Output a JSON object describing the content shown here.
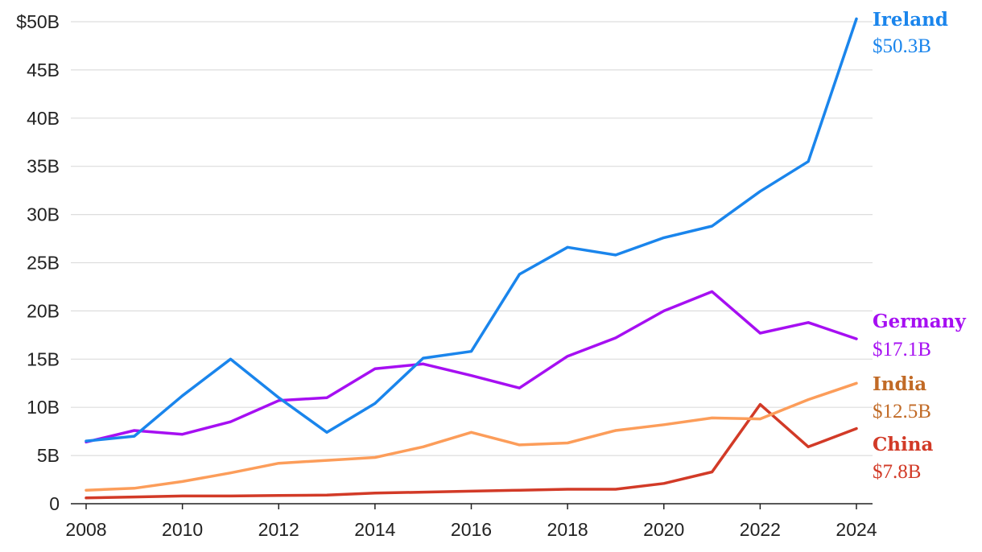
{
  "chart_data": {
    "type": "line",
    "x": [
      2008,
      2009,
      2010,
      2011,
      2012,
      2013,
      2014,
      2015,
      2016,
      2017,
      2018,
      2019,
      2020,
      2021,
      2022,
      2023,
      2024
    ],
    "x_ticks": [
      "2008",
      "2010",
      "2012",
      "2014",
      "2016",
      "2018",
      "2020",
      "2022",
      "2024"
    ],
    "x_tick_values": [
      2008,
      2010,
      2012,
      2014,
      2016,
      2018,
      2020,
      2022,
      2024
    ],
    "xlim": [
      2008,
      2024
    ],
    "y_ticks": [
      "0",
      "5B",
      "10B",
      "15B",
      "20B",
      "25B",
      "30B",
      "35B",
      "40B",
      "45B",
      "$50B"
    ],
    "y_tick_values": [
      0,
      5,
      10,
      15,
      20,
      25,
      30,
      35,
      40,
      45,
      50
    ],
    "ylim": [
      0,
      50
    ],
    "grid": true,
    "series": [
      {
        "key": "ireland",
        "name": "Ireland",
        "end_label": "$50.3B",
        "color": "#1a85ec",
        "label_color": "#1a85ec",
        "values": [
          6.5,
          7.0,
          11.2,
          15.0,
          11.0,
          7.4,
          10.4,
          15.1,
          15.8,
          23.8,
          26.6,
          25.8,
          27.6,
          28.8,
          32.4,
          35.5,
          50.3
        ]
      },
      {
        "key": "germany",
        "name": "Germany",
        "end_label": "$17.1B",
        "color": "#a60ff2",
        "label_color": "#a60ff2",
        "values": [
          6.4,
          7.6,
          7.2,
          8.5,
          10.7,
          11.0,
          14.0,
          14.5,
          13.3,
          12.0,
          15.3,
          17.2,
          20.0,
          22.0,
          17.7,
          18.8,
          17.1
        ]
      },
      {
        "key": "india",
        "name": "India",
        "end_label": "$12.5B",
        "color": "#fc9d5a",
        "label_color": "#c16a26",
        "values": [
          1.4,
          1.6,
          2.3,
          3.2,
          4.2,
          4.5,
          4.8,
          5.9,
          7.4,
          6.1,
          6.3,
          7.6,
          8.2,
          8.9,
          8.8,
          10.8,
          12.5
        ]
      },
      {
        "key": "china",
        "name": "China",
        "end_label": "$7.8B",
        "color": "#d23a27",
        "label_color": "#d23a27",
        "values": [
          0.6,
          0.7,
          0.8,
          0.8,
          0.85,
          0.9,
          1.1,
          1.2,
          1.3,
          1.4,
          1.5,
          1.5,
          2.1,
          3.3,
          10.3,
          5.9,
          7.8
        ]
      }
    ]
  }
}
